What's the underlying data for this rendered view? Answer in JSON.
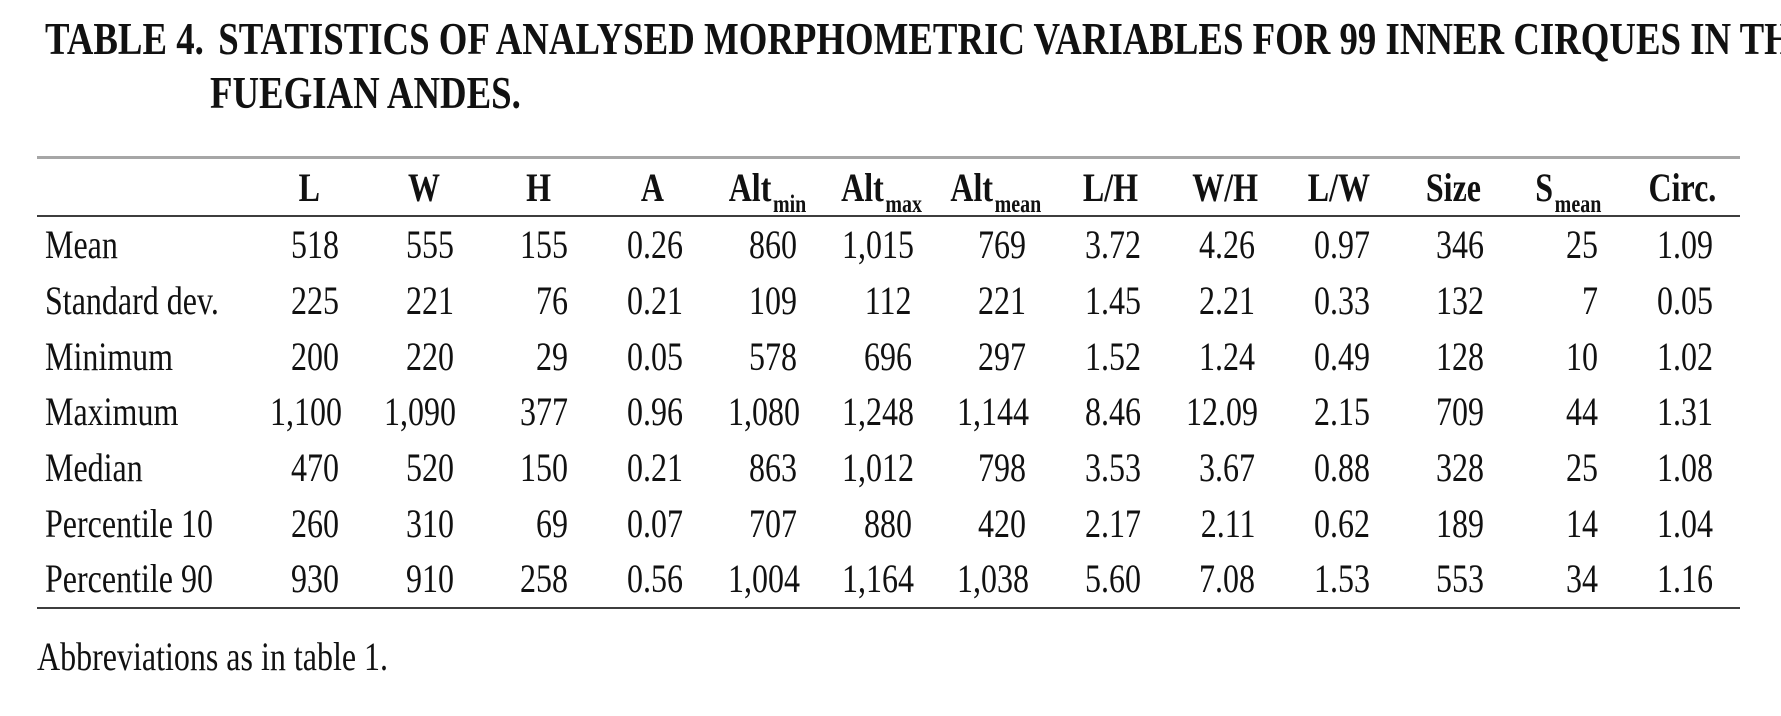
{
  "title": {
    "line1_label": "TABLE 4.",
    "line1_text": "STATISTICS OF ANALYSED MORPHOMETRIC VARIABLES FOR 99 INNER CIRQUES IN THE",
    "line2": "FUEGIAN ANDES."
  },
  "table": {
    "columns": [
      {
        "label": "L"
      },
      {
        "label": "W"
      },
      {
        "label": "H"
      },
      {
        "label": "A"
      },
      {
        "label": "Alt",
        "sub": "min"
      },
      {
        "label": "Alt",
        "sub": "max"
      },
      {
        "label": "Alt",
        "sub": "mean"
      },
      {
        "label": "L/H"
      },
      {
        "label": "W/H"
      },
      {
        "label": "L/W"
      },
      {
        "label": "Size"
      },
      {
        "label": "S",
        "sub": "mean"
      },
      {
        "label": "Circ."
      }
    ],
    "rows": [
      {
        "label": "Mean",
        "values": [
          "518",
          "555",
          "155",
          "0.26",
          "860",
          "1,015",
          "769",
          "3.72",
          "4.26",
          "0.97",
          "346",
          "25",
          "1.09"
        ]
      },
      {
        "label": "Standard dev.",
        "values": [
          "225",
          "221",
          "76",
          "0.21",
          "109",
          "112",
          "221",
          "1.45",
          "2.21",
          "0.33",
          "132",
          "7",
          "0.05"
        ]
      },
      {
        "label": "Minimum",
        "values": [
          "200",
          "220",
          "29",
          "0.05",
          "578",
          "696",
          "297",
          "1.52",
          "1.24",
          "0.49",
          "128",
          "10",
          "1.02"
        ]
      },
      {
        "label": "Maximum",
        "values": [
          "1,100",
          "1,090",
          "377",
          "0.96",
          "1,080",
          "1,248",
          "1,144",
          "8.46",
          "12.09",
          "2.15",
          "709",
          "44",
          "1.31"
        ]
      },
      {
        "label": "Median",
        "values": [
          "470",
          "520",
          "150",
          "0.21",
          "863",
          "1,012",
          "798",
          "3.53",
          "3.67",
          "0.88",
          "328",
          "25",
          "1.08"
        ]
      },
      {
        "label": "Percentile 10",
        "values": [
          "260",
          "310",
          "69",
          "0.07",
          "707",
          "880",
          "420",
          "2.17",
          "2.11",
          "0.62",
          "189",
          "14",
          "1.04"
        ]
      },
      {
        "label": "Percentile 90",
        "values": [
          "930",
          "910",
          "258",
          "0.56",
          "1,004",
          "1,164",
          "1,038",
          "5.60",
          "7.08",
          "1.53",
          "553",
          "34",
          "1.16"
        ]
      }
    ]
  },
  "footnote": "Abbreviations as in table 1.",
  "colors": {
    "rule_top": "#a6a6a6",
    "rule_dark": "#3d3d3d",
    "text": "#111111",
    "background": "#ffffff"
  }
}
